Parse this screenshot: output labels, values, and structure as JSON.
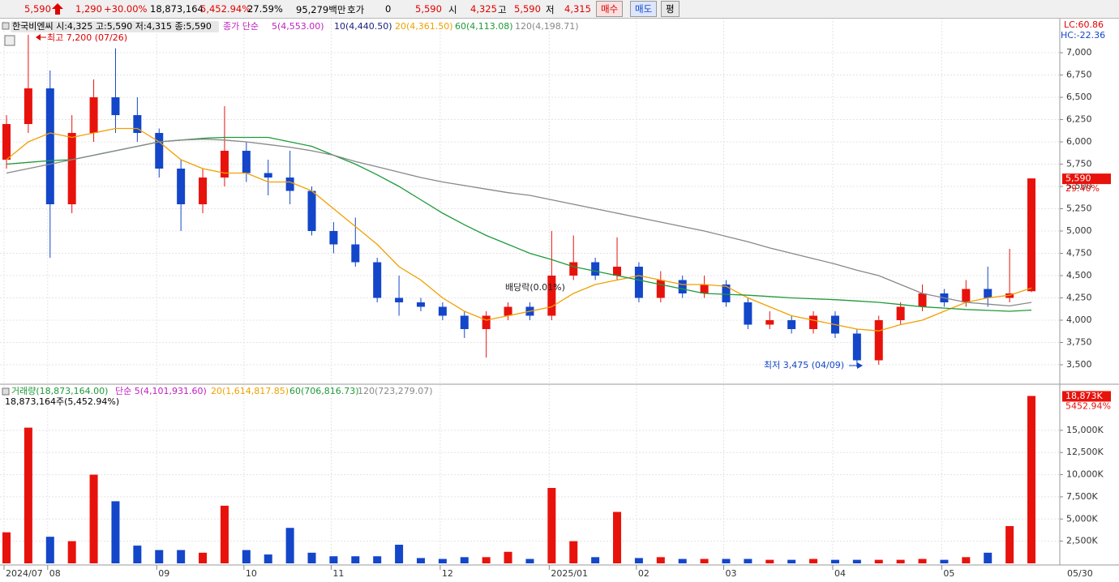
{
  "toolbar": {
    "price": "5,590",
    "change": "1,290",
    "change_pct": "+30.00%",
    "volume": "18,873,164",
    "volume_pct": "5,452.94%",
    "turnover": "27.59%",
    "amount": "95,279백만",
    "quote_label": "호가",
    "quote": "0",
    "quote_price": "5,590",
    "open_label": "시",
    "open": "4,325",
    "high_label": "고",
    "high": "5,590",
    "low_label": "저",
    "low": "4,315",
    "buy": "매수",
    "sell": "매도",
    "eval": "평"
  },
  "chart_data": [
    {
      "type": "candlestick",
      "header": "한국비엔씨 시:4,325 고:5,590 저:4,315 종:5,590",
      "ma_prefix": "종가 단순",
      "up_color": "#e8120c",
      "down_color": "#1346c9",
      "ohlc": [
        [
          5800,
          6300,
          5700,
          6200
        ],
        [
          6200,
          7200,
          6100,
          6600
        ],
        [
          6600,
          6800,
          4700,
          5300
        ],
        [
          5300,
          6300,
          5200,
          6100
        ],
        [
          6100,
          6700,
          6000,
          6500
        ],
        [
          6500,
          7050,
          6100,
          6300
        ],
        [
          6300,
          6500,
          6000,
          6100
        ],
        [
          6100,
          6150,
          5600,
          5700
        ],
        [
          5700,
          5800,
          5000,
          5300
        ],
        [
          5300,
          5700,
          5200,
          5600
        ],
        [
          5600,
          6400,
          5500,
          5900
        ],
        [
          5900,
          6000,
          5550,
          5650
        ],
        [
          5650,
          5800,
          5400,
          5600
        ],
        [
          5600,
          5900,
          5300,
          5450
        ],
        [
          5450,
          5500,
          4950,
          5000
        ],
        [
          5000,
          5100,
          4750,
          4850
        ],
        [
          4850,
          5150,
          4600,
          4650
        ],
        [
          4650,
          4700,
          4200,
          4250
        ],
        [
          4250,
          4500,
          4050,
          4200
        ],
        [
          4200,
          4250,
          4100,
          4150
        ],
        [
          4150,
          4200,
          4000,
          4050
        ],
        [
          4050,
          4100,
          3800,
          3900
        ],
        [
          3900,
          4100,
          3580,
          4050
        ],
        [
          4050,
          4200,
          4000,
          4150
        ],
        [
          4150,
          4200,
          4000,
          4050
        ],
        [
          4050,
          5000,
          4000,
          4500
        ],
        [
          4500,
          4950,
          4450,
          4650
        ],
        [
          4650,
          4700,
          4450,
          4500
        ],
        [
          4500,
          4930,
          4450,
          4600
        ],
        [
          4600,
          4650,
          4200,
          4250
        ],
        [
          4250,
          4550,
          4200,
          4450
        ],
        [
          4450,
          4500,
          4250,
          4300
        ],
        [
          4300,
          4500,
          4250,
          4400
        ],
        [
          4400,
          4450,
          4150,
          4200
        ],
        [
          4200,
          4250,
          3900,
          3950
        ],
        [
          3950,
          4100,
          3900,
          4000
        ],
        [
          4000,
          4050,
          3850,
          3900
        ],
        [
          3900,
          4100,
          3850,
          4050
        ],
        [
          4050,
          4100,
          3800,
          3850
        ],
        [
          3850,
          3900,
          3475,
          3550
        ],
        [
          3550,
          4050,
          3500,
          4000
        ],
        [
          4000,
          4200,
          3950,
          4150
        ],
        [
          4150,
          4400,
          4100,
          4300
        ],
        [
          4300,
          4350,
          4150,
          4200
        ],
        [
          4200,
          4450,
          4150,
          4350
        ],
        [
          4350,
          4600,
          4150,
          4250
        ],
        [
          4250,
          4800,
          4200,
          4300
        ],
        [
          4325,
          5590,
          4315,
          5590
        ]
      ],
      "series": [
        {
          "name": "5(4,553.00)",
          "color": "#c020c0"
        },
        {
          "name": "10(4,440.50)",
          "color": "#1a237e"
        },
        {
          "name": "20(4,361.50)",
          "color": "#f0a000",
          "values": [
            5800,
            6000,
            6100,
            6050,
            6100,
            6150,
            6150,
            6000,
            5800,
            5700,
            5650,
            5650,
            5550,
            5550,
            5450,
            5250,
            5050,
            4850,
            4600,
            4450,
            4250,
            4100,
            4000,
            4050,
            4100,
            4150,
            4300,
            4400,
            4450,
            4500,
            4450,
            4400,
            4400,
            4380,
            4250,
            4150,
            4050,
            4000,
            3950,
            3900,
            3880,
            3950,
            4000,
            4100,
            4200,
            4250,
            4280,
            4360
          ]
        },
        {
          "name": "60(4,113.08)",
          "color": "#1e9a3a",
          "values": [
            5750,
            5770,
            5790,
            5800,
            5850,
            5900,
            5950,
            6000,
            6020,
            6040,
            6050,
            6050,
            6050,
            6000,
            5950,
            5850,
            5750,
            5630,
            5500,
            5350,
            5200,
            5070,
            4950,
            4850,
            4750,
            4680,
            4600,
            4550,
            4500,
            4450,
            4400,
            4350,
            4300,
            4290,
            4280,
            4265,
            4250,
            4240,
            4230,
            4215,
            4200,
            4175,
            4150,
            4135,
            4120,
            4110,
            4100,
            4113
          ]
        },
        {
          "name": "120(4,198.71)",
          "color": "#888888",
          "values": [
            5650,
            5700,
            5750,
            5800,
            5850,
            5900,
            5950,
            6000,
            6020,
            6030,
            6020,
            6000,
            5970,
            5940,
            5900,
            5850,
            5780,
            5720,
            5660,
            5600,
            5550,
            5510,
            5470,
            5430,
            5400,
            5350,
            5300,
            5250,
            5200,
            5150,
            5100,
            5050,
            5000,
            4940,
            4880,
            4810,
            4750,
            4690,
            4630,
            4560,
            4500,
            4400,
            4300,
            4250,
            4200,
            4180,
            4160,
            4199
          ]
        }
      ],
      "ylim": [
        3318,
        7364
      ],
      "yticks": [
        {
          "value": 3500,
          "label": "3,500"
        },
        {
          "value": 3750,
          "label": "3,750"
        },
        {
          "value": 4000,
          "label": "4,000"
        },
        {
          "value": 4250,
          "label": "4,250"
        },
        {
          "value": 4500,
          "label": "4,500"
        },
        {
          "value": 4750,
          "label": "4,750"
        },
        {
          "value": 5000,
          "label": "5,000"
        },
        {
          "value": 5250,
          "label": "5,250"
        },
        {
          "value": 5500,
          "label": "5,500"
        },
        {
          "value": 5750,
          "label": "5,750"
        },
        {
          "value": 6000,
          "label": "6,000"
        },
        {
          "value": 6250,
          "label": "6,250"
        },
        {
          "value": 6500,
          "label": "6,500"
        },
        {
          "value": 6750,
          "label": "6,750"
        },
        {
          "value": 7000,
          "label": "7,000"
        }
      ],
      "last_label": {
        "value": 5590,
        "label": "5,590"
      },
      "last_change": "29.40%",
      "lc": "LC:60.86",
      "hc": "HC:-22.36",
      "annotations": {
        "high": "최고 7,200 (07/26)",
        "low": "최저 3,475 (04/09)",
        "dividend": "배당락(0.01%)"
      },
      "grid": true
    },
    {
      "type": "bar",
      "header": "18,873,164주(5,452.94%)",
      "legend": [
        {
          "name": "거래량(18,873,164.00)",
          "color": "#1e9a3a"
        },
        {
          "name": "단순 5(4,101,931.60)",
          "color": "#c020c0"
        },
        {
          "name": "20(1,614,817.85)",
          "color": "#f0a000"
        },
        {
          "name": "60(706,816.73)",
          "color": "#1e9a3a"
        },
        {
          "name": "120(723,279.07)",
          "color": "#888888"
        }
      ],
      "categories": [
        "2024/07",
        null,
        "08",
        null,
        null,
        null,
        null,
        "09",
        null,
        null,
        null,
        "10",
        null,
        null,
        null,
        "11",
        null,
        null,
        null,
        null,
        "12",
        null,
        null,
        null,
        null,
        "2025/01",
        null,
        null,
        null,
        "02",
        null,
        null,
        null,
        "03",
        null,
        null,
        null,
        null,
        "04",
        null,
        null,
        null,
        null,
        "05",
        null,
        null,
        null,
        null
      ],
      "end_label": "05/30",
      "values": [
        3500,
        15300,
        3000,
        2500,
        10000,
        7000,
        2000,
        1500,
        1500,
        1200,
        6500,
        1500,
        1000,
        4000,
        1200,
        800,
        800,
        800,
        2100,
        600,
        500,
        700,
        700,
        1300,
        500,
        8500,
        2500,
        700,
        5800,
        600,
        700,
        500,
        500,
        500,
        500,
        400,
        400,
        500,
        400,
        400,
        400,
        400,
        500,
        400,
        700,
        1200,
        4200,
        18873
      ],
      "ylim": [
        0,
        19830
      ],
      "yticks": [
        {
          "value": 2500,
          "label": "2,500K"
        },
        {
          "value": 5000,
          "label": "5,000K"
        },
        {
          "value": 7500,
          "label": "7,500K"
        },
        {
          "value": 10000,
          "label": "10,000K"
        },
        {
          "value": 12500,
          "label": "12,500K"
        },
        {
          "value": 15000,
          "label": "15,000K"
        }
      ],
      "last_label": {
        "value": 18873,
        "label": "18,873K"
      },
      "last_change": "5452.94%",
      "grid": true
    }
  ]
}
